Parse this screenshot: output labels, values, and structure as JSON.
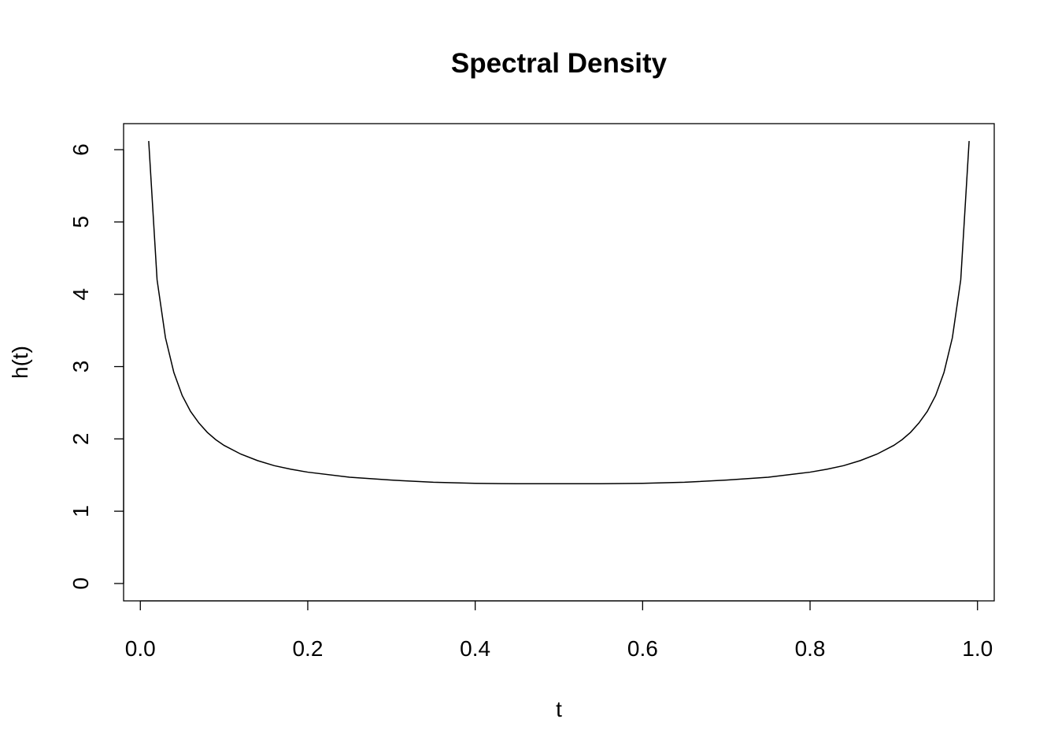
{
  "chart_data": {
    "type": "line",
    "title": "Spectral Density",
    "xlabel": "t",
    "ylabel": "h(t)",
    "xlim": [
      -0.02,
      1.02
    ],
    "ylim": [
      -0.24,
      6.36
    ],
    "xticks": [
      "0.0",
      "0.2",
      "0.4",
      "0.6",
      "0.8",
      "1.0"
    ],
    "yticks": [
      "0",
      "1",
      "2",
      "3",
      "4",
      "5",
      "6"
    ],
    "grid": false,
    "legend": "none",
    "series": [
      {
        "color": "#000000",
        "x": [
          0.01,
          0.02,
          0.03,
          0.04,
          0.05,
          0.06,
          0.07,
          0.08,
          0.09,
          0.1,
          0.12,
          0.14,
          0.16,
          0.18,
          0.2,
          0.25,
          0.3,
          0.35,
          0.4,
          0.45,
          0.5,
          0.55,
          0.6,
          0.65,
          0.7,
          0.75,
          0.8,
          0.82,
          0.84,
          0.86,
          0.88,
          0.9,
          0.91,
          0.92,
          0.93,
          0.94,
          0.95,
          0.96,
          0.97,
          0.98,
          0.99
        ],
        "y": [
          6.12,
          4.2,
          3.4,
          2.92,
          2.6,
          2.38,
          2.22,
          2.09,
          1.99,
          1.91,
          1.79,
          1.7,
          1.63,
          1.58,
          1.54,
          1.47,
          1.43,
          1.4,
          1.385,
          1.38,
          1.38,
          1.38,
          1.385,
          1.4,
          1.43,
          1.47,
          1.54,
          1.58,
          1.63,
          1.7,
          1.79,
          1.91,
          1.99,
          2.09,
          2.22,
          2.38,
          2.6,
          2.92,
          3.4,
          4.2,
          6.12
        ]
      }
    ]
  }
}
